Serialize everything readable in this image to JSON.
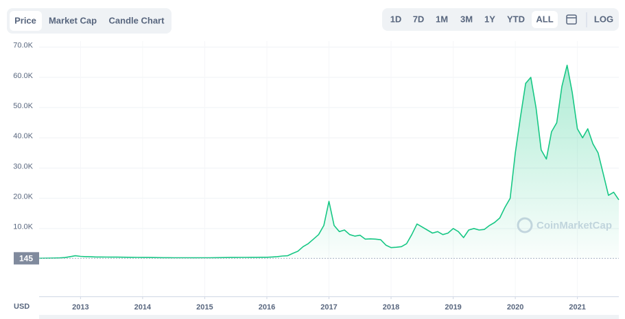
{
  "chart_data": {
    "type": "area",
    "tabs": [
      "Price",
      "Market Cap",
      "Candle Chart"
    ],
    "ranges": [
      "1D",
      "7D",
      "1M",
      "3M",
      "1Y",
      "YTD",
      "ALL"
    ],
    "log_button": "LOG",
    "currency": "USD",
    "watermark": "CoinMarketCap",
    "baseline_value": 145,
    "color": "#16c784",
    "grid": true,
    "ylim": [
      0,
      72000
    ],
    "yticks": [
      {
        "value": 10000,
        "label": "10.0K"
      },
      {
        "value": 20000,
        "label": "20.0K"
      },
      {
        "value": 30000,
        "label": "30.0K"
      },
      {
        "value": 40000,
        "label": "40.0K"
      },
      {
        "value": 50000,
        "label": "50.0K"
      },
      {
        "value": 60000,
        "label": "60.0K"
      },
      {
        "value": 70000,
        "label": "70.0K"
      }
    ],
    "categories": [
      null,
      null,
      null,
      null,
      null,
      null,
      null,
      null,
      "2013",
      null,
      null,
      null,
      null,
      null,
      null,
      null,
      null,
      null,
      null,
      null,
      "2014",
      null,
      null,
      null,
      null,
      null,
      null,
      null,
      null,
      null,
      null,
      null,
      "2015",
      null,
      null,
      null,
      null,
      null,
      null,
      null,
      null,
      null,
      null,
      null,
      "2016",
      null,
      null,
      null,
      null,
      null,
      null,
      null,
      null,
      null,
      null,
      null,
      "2017",
      null,
      null,
      null,
      null,
      null,
      null,
      null,
      null,
      null,
      null,
      null,
      "2018",
      null,
      null,
      null,
      null,
      null,
      null,
      null,
      null,
      null,
      null,
      null,
      "2019",
      null,
      null,
      null,
      null,
      null,
      null,
      null,
      null,
      null,
      null,
      null,
      "2020",
      null,
      null,
      null,
      null,
      null,
      null,
      null,
      null,
      null,
      null,
      null,
      "2021",
      null,
      null,
      null,
      null,
      null,
      null,
      null,
      null
    ],
    "values": [
      150,
      180,
      200,
      250,
      300,
      400,
      700,
      1000,
      800,
      700,
      650,
      600,
      580,
      560,
      550,
      540,
      520,
      500,
      480,
      450,
      430,
      420,
      400,
      380,
      370,
      360,
      350,
      340,
      340,
      330,
      320,
      330,
      340,
      350,
      360,
      380,
      400,
      420,
      440,
      450,
      460,
      470,
      480,
      490,
      500,
      600,
      700,
      900,
      1000,
      1800,
      2500,
      4000,
      5000,
      6500,
      8000,
      11000,
      19000,
      11000,
      9000,
      9500,
      8000,
      7500,
      7800,
      6500,
      6600,
      6500,
      6300,
      4500,
      3700,
      3800,
      4000,
      5000,
      8000,
      11500,
      10500,
      9500,
      8500,
      9000,
      8000,
      8500,
      10000,
      9000,
      7000,
      9500,
      10000,
      9500,
      9700,
      11000,
      12000,
      13500,
      17000,
      20000,
      35000,
      47000,
      58000,
      60000,
      50000,
      36000,
      33000,
      42000,
      45000,
      57000,
      64000,
      55000,
      43000,
      40000,
      43000,
      38000,
      35000,
      28000,
      21000,
      22000,
      19500
    ]
  }
}
